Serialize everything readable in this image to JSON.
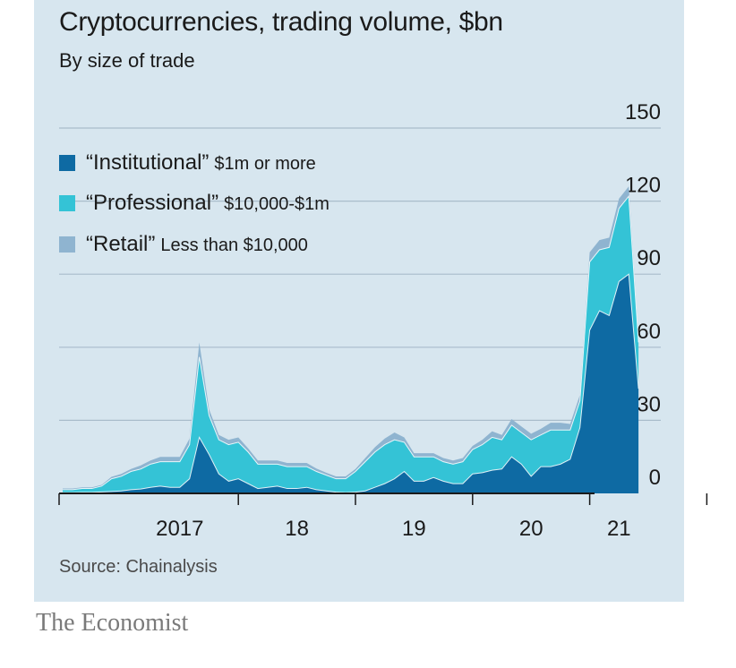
{
  "chart_data": {
    "type": "area",
    "title": "Cryptocurrencies, trading volume, $bn",
    "subtitle": "By size of trade",
    "source": "Source: Chainalysis",
    "stacked": true,
    "x_tick_labels": [
      "2017",
      "18",
      "19",
      "20",
      "21"
    ],
    "y_tick_labels": [
      "150",
      "120",
      "90",
      "60",
      "30",
      "0"
    ],
    "ylim": [
      0,
      150
    ],
    "y_ticks": [
      0,
      30,
      60,
      90,
      120,
      150
    ],
    "grid": true,
    "x": [
      "2016-07",
      "2016-08",
      "2016-09",
      "2016-10",
      "2016-11",
      "2016-12",
      "2017-01",
      "2017-02",
      "2017-03",
      "2017-04",
      "2017-05",
      "2017-06",
      "2017-07",
      "2017-08",
      "2017-09",
      "2017-10",
      "2017-11",
      "2017-12",
      "2018-01",
      "2018-02",
      "2018-03",
      "2018-04",
      "2018-05",
      "2018-06",
      "2018-07",
      "2018-08",
      "2018-09",
      "2018-10",
      "2018-11",
      "2018-12",
      "2019-01",
      "2019-02",
      "2019-03",
      "2019-04",
      "2019-05",
      "2019-06",
      "2019-07",
      "2019-08",
      "2019-09",
      "2019-10",
      "2019-11",
      "2019-12",
      "2020-01",
      "2020-02",
      "2020-03",
      "2020-04",
      "2020-05",
      "2020-06",
      "2020-07",
      "2020-08",
      "2020-09",
      "2020-10",
      "2020-11",
      "2020-12",
      "2021-01",
      "2021-02",
      "2021-03",
      "2021-04",
      "2021-05",
      "2021-06"
    ],
    "series": [
      {
        "name": "“Institutional” $1m or more",
        "legend_name": "“Institutional”",
        "legend_desc": "$1m or more",
        "color": "#0e6aa3",
        "values": [
          0.3,
          0.3,
          0.4,
          0.4,
          0.6,
          0.8,
          1.0,
          1.5,
          1.8,
          2.5,
          3.0,
          2.5,
          2.5,
          6.0,
          23.0,
          16.0,
          8.0,
          5.0,
          6.0,
          4.0,
          2.0,
          2.5,
          3.0,
          2.0,
          2.0,
          2.5,
          1.5,
          1.0,
          0.5,
          0.3,
          0.5,
          1.0,
          2.5,
          4.0,
          6.0,
          9.0,
          5.0,
          5.0,
          6.5,
          5.0,
          4.0,
          4.0,
          8.0,
          8.5,
          9.5,
          10.0,
          15.0,
          12.0,
          7.0,
          11.0,
          11.0,
          12.0,
          14.0,
          27.0,
          67.0,
          75.0,
          73.0,
          87.0,
          90.0,
          43.0
        ]
      },
      {
        "name": "“Professional” $10,000-$1m",
        "legend_name": "“Professional”",
        "legend_desc": "$10,000-$1m",
        "color": "#34c3d6",
        "values": [
          1.2,
          1.2,
          1.6,
          1.6,
          2.4,
          5.2,
          6.0,
          7.5,
          8.2,
          9.5,
          10.0,
          10.5,
          10.5,
          14.0,
          33.0,
          16.0,
          14.0,
          15.0,
          15.0,
          13.0,
          10.0,
          9.5,
          9.0,
          9.0,
          9.0,
          8.5,
          7.5,
          6.5,
          5.5,
          5.7,
          8.5,
          12.0,
          14.5,
          16.0,
          16.0,
          12.0,
          10.0,
          10.0,
          8.5,
          8.0,
          8.0,
          9.0,
          10.0,
          11.5,
          13.5,
          12.0,
          13.0,
          13.0,
          15.0,
          13.0,
          15.0,
          14.0,
          12.0,
          11.0,
          28.0,
          25.0,
          28.0,
          30.0,
          32.0,
          19.0
        ]
      },
      {
        "name": "“Retail” Less than $10,000",
        "legend_name": "“Retail”",
        "legend_desc": "Less than $10,000",
        "color": "#8fb4d0",
        "values": [
          0.5,
          0.5,
          0.5,
          0.5,
          0.5,
          0.8,
          1.0,
          1.0,
          1.5,
          1.5,
          2.0,
          2.0,
          2.0,
          2.5,
          6.0,
          2.5,
          2.0,
          2.0,
          2.0,
          1.5,
          1.5,
          1.5,
          1.5,
          1.5,
          1.5,
          1.5,
          1.2,
          1.0,
          1.0,
          1.0,
          1.0,
          1.5,
          2.0,
          2.5,
          3.0,
          2.0,
          1.5,
          1.5,
          1.5,
          1.5,
          1.5,
          1.5,
          1.5,
          2.0,
          2.5,
          2.0,
          2.5,
          2.5,
          2.5,
          2.5,
          3.0,
          3.0,
          2.5,
          2.5,
          4.0,
          4.0,
          4.0,
          4.0,
          4.0,
          2.0
        ]
      }
    ]
  },
  "brand": "The Economist"
}
